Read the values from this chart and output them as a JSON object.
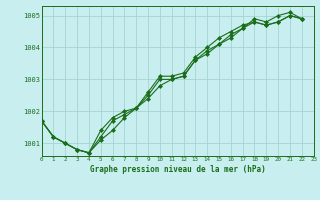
{
  "background_color": "#c8eef0",
  "grid_color": "#9ecfcf",
  "line_color": "#1a6e1a",
  "series": [
    [
      1001.7,
      1001.2,
      1001.0,
      1000.8,
      1000.7,
      1001.1,
      1001.4,
      1001.8,
      1002.1,
      1002.4,
      1002.8,
      1003.0,
      1003.1,
      1003.6,
      1003.8,
      1004.1,
      1004.3,
      1004.6,
      1004.8,
      1004.7,
      1004.8,
      1005.0,
      1004.9
    ],
    [
      1001.7,
      1001.2,
      1001.0,
      1000.8,
      1000.7,
      1001.2,
      1001.7,
      1001.9,
      1002.1,
      1002.5,
      1003.0,
      1003.0,
      1003.1,
      1003.6,
      1003.9,
      1004.1,
      1004.4,
      1004.6,
      1004.9,
      1004.8,
      1005.0,
      1005.1,
      1004.9
    ],
    [
      1001.7,
      1001.2,
      1001.0,
      1000.8,
      1000.7,
      1001.4,
      1001.8,
      1002.0,
      1002.1,
      1002.6,
      1003.1,
      1003.1,
      1003.2,
      1003.7,
      1004.0,
      1004.3,
      1004.5,
      1004.7,
      1004.8,
      1004.7,
      1004.8,
      1005.0,
      1004.9
    ]
  ],
  "xlim": [
    0,
    23
  ],
  "ylim": [
    1000.6,
    1005.3
  ],
  "yticks": [
    1001,
    1002,
    1003,
    1004,
    1005
  ],
  "xticks": [
    0,
    1,
    2,
    3,
    4,
    5,
    6,
    7,
    8,
    9,
    10,
    11,
    12,
    13,
    14,
    15,
    16,
    17,
    18,
    19,
    20,
    21,
    22,
    23
  ],
  "xlabel": "Graphe pression niveau de la mer (hPa)",
  "marker": "D",
  "markersize": 2.0,
  "linewidth": 0.8
}
